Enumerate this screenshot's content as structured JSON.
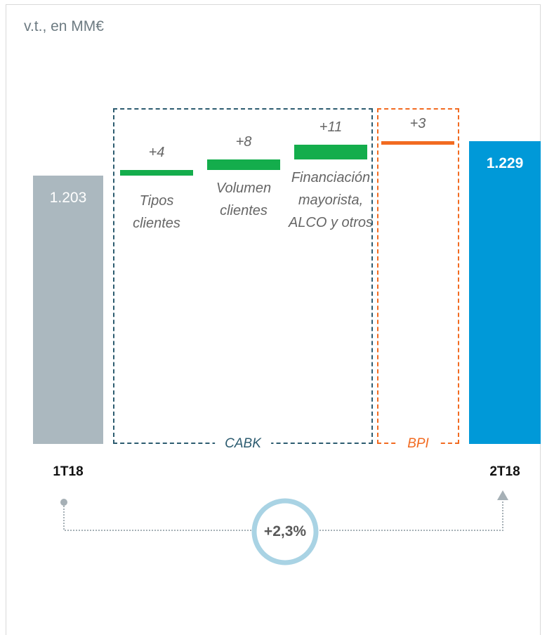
{
  "chart_data": {
    "type": "waterfall",
    "subtitle": "v.t., en MM€",
    "categories": [
      "1T18",
      "Tipos clientes",
      "Volumen clientes",
      "Financiación mayorista, ALCO y otros",
      null,
      "2T18"
    ],
    "values": [
      1203,
      4,
      8,
      11,
      3,
      1229
    ],
    "value_labels": [
      "1.203",
      "+4",
      "+8",
      "+11",
      "+3",
      "1.229"
    ],
    "measure": [
      "total",
      "relative",
      "relative",
      "relative",
      "relative",
      "total"
    ],
    "colors": [
      "#abb8bf",
      "#14ad4c",
      "#14ad4c",
      "#14ad4c",
      "#f26b21",
      "#0099d8"
    ],
    "groups": [
      {
        "name": "CABK",
        "from": 1,
        "to": 3,
        "color": "#2d5c70"
      },
      {
        "name": "BPI",
        "from": 4,
        "to": 4,
        "color": "#f26b21"
      }
    ],
    "annotation": "+2,3%",
    "ylim": [
      1000,
      1240
    ]
  }
}
